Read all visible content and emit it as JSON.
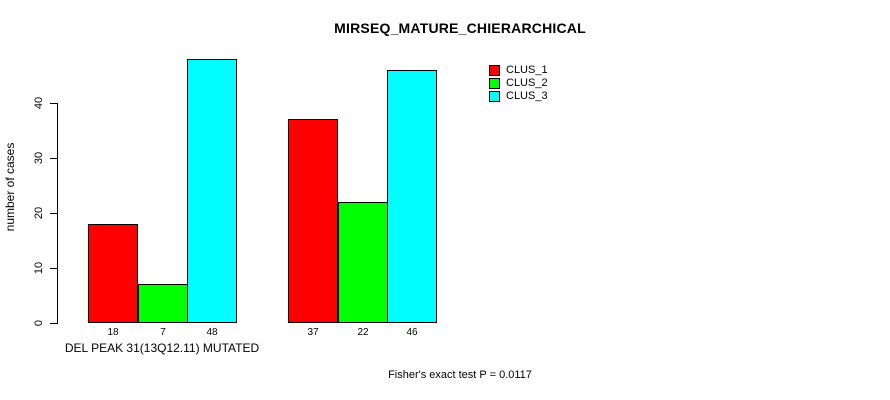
{
  "chart_data": {
    "type": "bar",
    "title": "MIRSEQ_MATURE_CHIERARCHICAL",
    "ylabel": "number of cases",
    "xlabel": "DEL PEAK 31(13Q12.11) MUTATED",
    "categories": [
      "DEL PEAK 31(13Q12.11) MUTATED",
      ""
    ],
    "series": [
      {
        "name": "CLUS_1",
        "color": "#ff0000",
        "values": [
          18,
          37
        ]
      },
      {
        "name": "CLUS_2",
        "color": "#00ff00",
        "values": [
          7,
          22
        ]
      },
      {
        "name": "CLUS_3",
        "color": "#00ffff",
        "values": [
          48,
          46
        ]
      }
    ],
    "ylim": [
      0,
      48
    ],
    "yticks": [
      0,
      10,
      20,
      30,
      40
    ],
    "grid": false,
    "legend_position": "top-right",
    "bar_value_labels_shown": true,
    "annotation": "Fisher's exact test P = 0.0117"
  }
}
